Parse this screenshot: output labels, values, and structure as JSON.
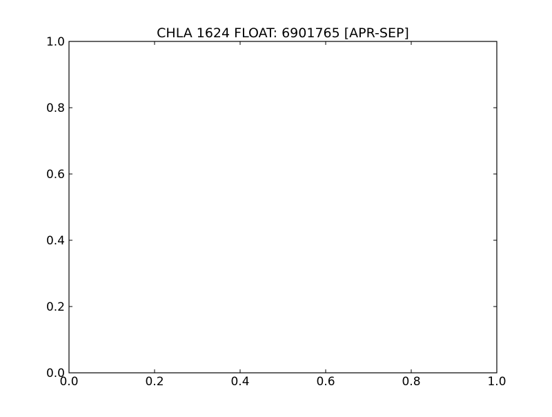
{
  "chart_data": {
    "type": "scatter",
    "title": "CHLA 1624 FLOAT: 6901765 [APR-SEP]",
    "xlabel": "",
    "ylabel": "",
    "xlim": [
      0.0,
      1.0
    ],
    "ylim": [
      0.0,
      1.0
    ],
    "x_ticks": [
      0.0,
      0.2,
      0.4,
      0.6,
      0.8,
      1.0
    ],
    "y_ticks": [
      0.0,
      0.2,
      0.4,
      0.6,
      0.8,
      1.0
    ],
    "x_tick_labels": [
      "0.0",
      "0.2",
      "0.4",
      "0.6",
      "0.8",
      "1.0"
    ],
    "y_tick_labels": [
      "0.0",
      "0.2",
      "0.4",
      "0.6",
      "0.8",
      "1.0"
    ],
    "series": [],
    "grid": false,
    "colors": {
      "axes": "#000000",
      "background": "#ffffff"
    }
  }
}
